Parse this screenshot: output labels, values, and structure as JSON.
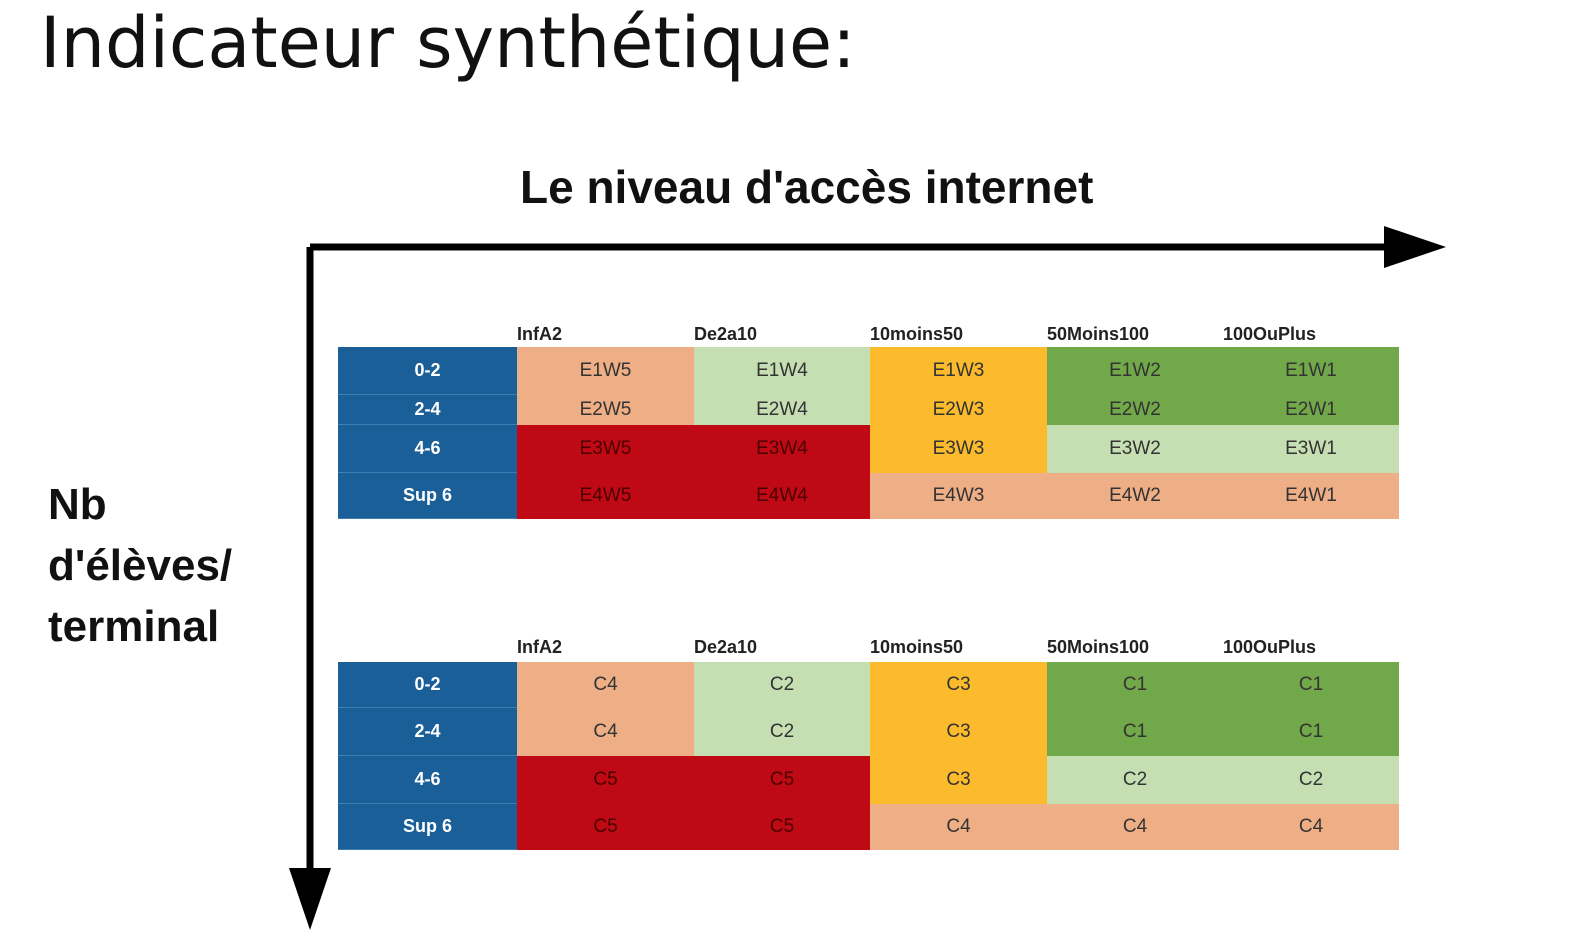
{
  "page_title": "Indicateur synthétique:",
  "x_axis_title": "Le niveau d'accès internet",
  "y_axis_title_lines": [
    "Nb",
    "d'élèves/",
    "terminal"
  ],
  "colors": {
    "row_label_bg": "#1a5f97",
    "salmon": "#eeae86",
    "light_green": "#c5dfb3",
    "orange": "#fbbb2c",
    "green": "#71a84a",
    "red": "#bf0914"
  },
  "tables": [
    {
      "columns": [
        "InfA2",
        "De2a10",
        "10moins50",
        "50Moins100",
        "100OuPlus"
      ],
      "rows": [
        {
          "label": "0-2",
          "cells": [
            "E1W5",
            "E1W4",
            "E1W3",
            "E1W2",
            "E1W1"
          ]
        },
        {
          "label": "2-4",
          "cells": [
            "E2W5",
            "E2W4",
            "E2W3",
            "E2W2",
            "E2W1"
          ]
        },
        {
          "label": "4-6",
          "cells": [
            "E3W5",
            "E3W4",
            "E3W3",
            "E3W2",
            "E3W1"
          ]
        },
        {
          "label": "Sup 6",
          "cells": [
            "E4W5",
            "E4W4",
            "E4W3",
            "E4W2",
            "E4W1"
          ]
        }
      ],
      "cell_colors": [
        [
          "salmon",
          "light_green",
          "orange",
          "green",
          "green"
        ],
        [
          "salmon",
          "light_green",
          "orange",
          "green",
          "green"
        ],
        [
          "red",
          "red",
          "orange",
          "light_green",
          "light_green"
        ],
        [
          "red",
          "red",
          "salmon",
          "salmon",
          "salmon"
        ]
      ]
    },
    {
      "columns": [
        "InfA2",
        "De2a10",
        "10moins50",
        "50Moins100",
        "100OuPlus"
      ],
      "rows": [
        {
          "label": "0-2",
          "cells": [
            "C4",
            "C2",
            "C3",
            "C1",
            "C1"
          ]
        },
        {
          "label": "2-4",
          "cells": [
            "C4",
            "C2",
            "C3",
            "C1",
            "C1"
          ]
        },
        {
          "label": "4-6",
          "cells": [
            "C5",
            "C5",
            "C3",
            "C2",
            "C2"
          ]
        },
        {
          "label": "Sup 6",
          "cells": [
            "C5",
            "C5",
            "C4",
            "C4",
            "C4"
          ]
        }
      ],
      "cell_colors": [
        [
          "salmon",
          "light_green",
          "orange",
          "green",
          "green"
        ],
        [
          "salmon",
          "light_green",
          "orange",
          "green",
          "green"
        ],
        [
          "red",
          "red",
          "orange",
          "light_green",
          "light_green"
        ],
        [
          "red",
          "red",
          "salmon",
          "salmon",
          "salmon"
        ]
      ]
    }
  ]
}
